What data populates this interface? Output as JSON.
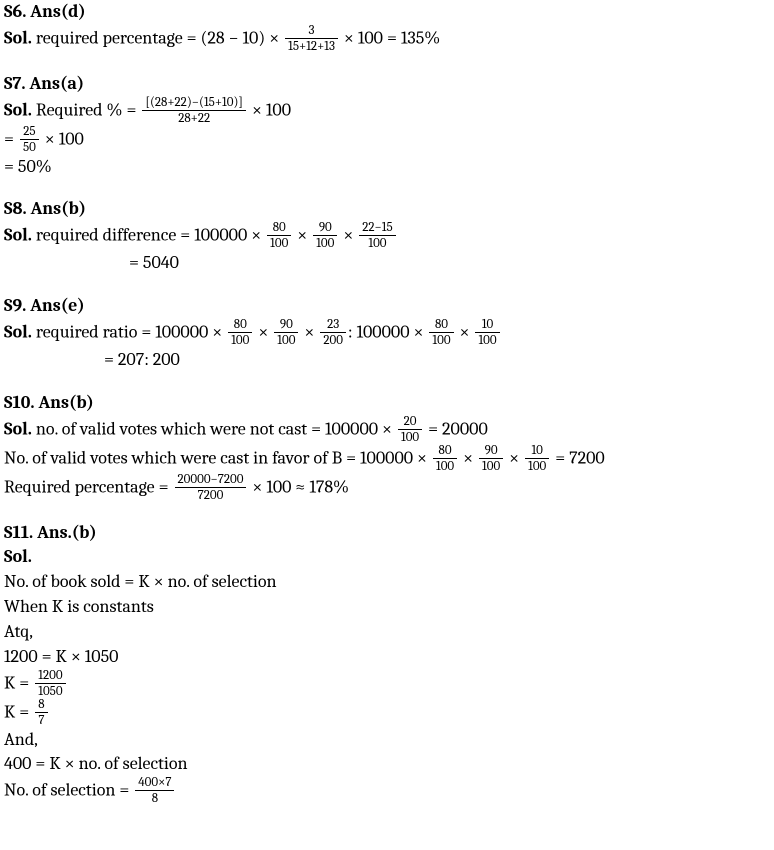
{
  "s6": {
    "header": "S6. Ans(d)",
    "sol_label": "Sol.",
    "text_a": " required percentage = (28 − 10) × ",
    "frac1_num": "3",
    "frac1_den": "15+12+13",
    "text_b": " × 100 = 135%"
  },
  "s7": {
    "header": "S7. Ans(a)",
    "sol_label": "Sol.",
    "text_a": " Required % = ",
    "frac1_num": "[(28+22)−(15+10)]",
    "frac1_den": "28+22",
    "text_b": " × 100",
    "line2_a": "= ",
    "frac2_num": "25",
    "frac2_den": "50",
    "line2_b": " × 100",
    "line3": "= 50%"
  },
  "s8": {
    "header": "S8. Ans(b)",
    "sol_label": "Sol.",
    "text_a": " required difference = 100000 × ",
    "f1n": "80",
    "f1d": "100",
    "mid1": " × ",
    "f2n": "90",
    "f2d": "100",
    "mid2": " × ",
    "f3n": "22−15",
    "f3d": "100",
    "line2": "= 5040"
  },
  "s9": {
    "header": "S9. Ans(e)",
    "sol_label": "Sol.",
    "text_a": " required ratio = 100000 × ",
    "f1n": "80",
    "f1d": "100",
    "m1": " × ",
    "f2n": "90",
    "f2d": "100",
    "m2": " × ",
    "f3n": "23",
    "f3d": "200",
    "m3": ": 100000 × ",
    "f4n": "80",
    "f4d": "100",
    "m4": " × ",
    "f5n": "10",
    "f5d": "100",
    "line2": "= 207: 200"
  },
  "s10": {
    "header": "S10. Ans(b)",
    "sol_label": "Sol.",
    "l1a": " no. of valid votes which were not cast = 100000 × ",
    "f1n": "20",
    "f1d": "100",
    "l1b": " = 20000",
    "l2a": "No. of valid votes which were cast in favor of B = 100000 × ",
    "f2n": "80",
    "f2d": "100",
    "m2": " × ",
    "f3n": "90",
    "f3d": "100",
    "m3": " × ",
    "f4n": "10",
    "f4d": "100",
    "l2b": " = 7200",
    "l3a": "Required percentage = ",
    "f5n": "20000−7200",
    "f5d": "7200",
    "l3b": " × 100 ≈ 178%"
  },
  "s11": {
    "header": "S11. Ans.(b)",
    "sol_label": "Sol.",
    "l1": "No. of book sold = K × no. of selection",
    "l2": "When K is constants",
    "l3": "Atq,",
    "l4": "1200 = K × 1050",
    "l5a": "K = ",
    "f1n": "1200",
    "f1d": "1050",
    "l6a": "K = ",
    "f2n": "8",
    "f2d": "7",
    "l7": "And,",
    "l8": "400 = K × no. of selection",
    "l9a": "No. of selection = ",
    "f3n": "400×7",
    "f3d": "8"
  }
}
